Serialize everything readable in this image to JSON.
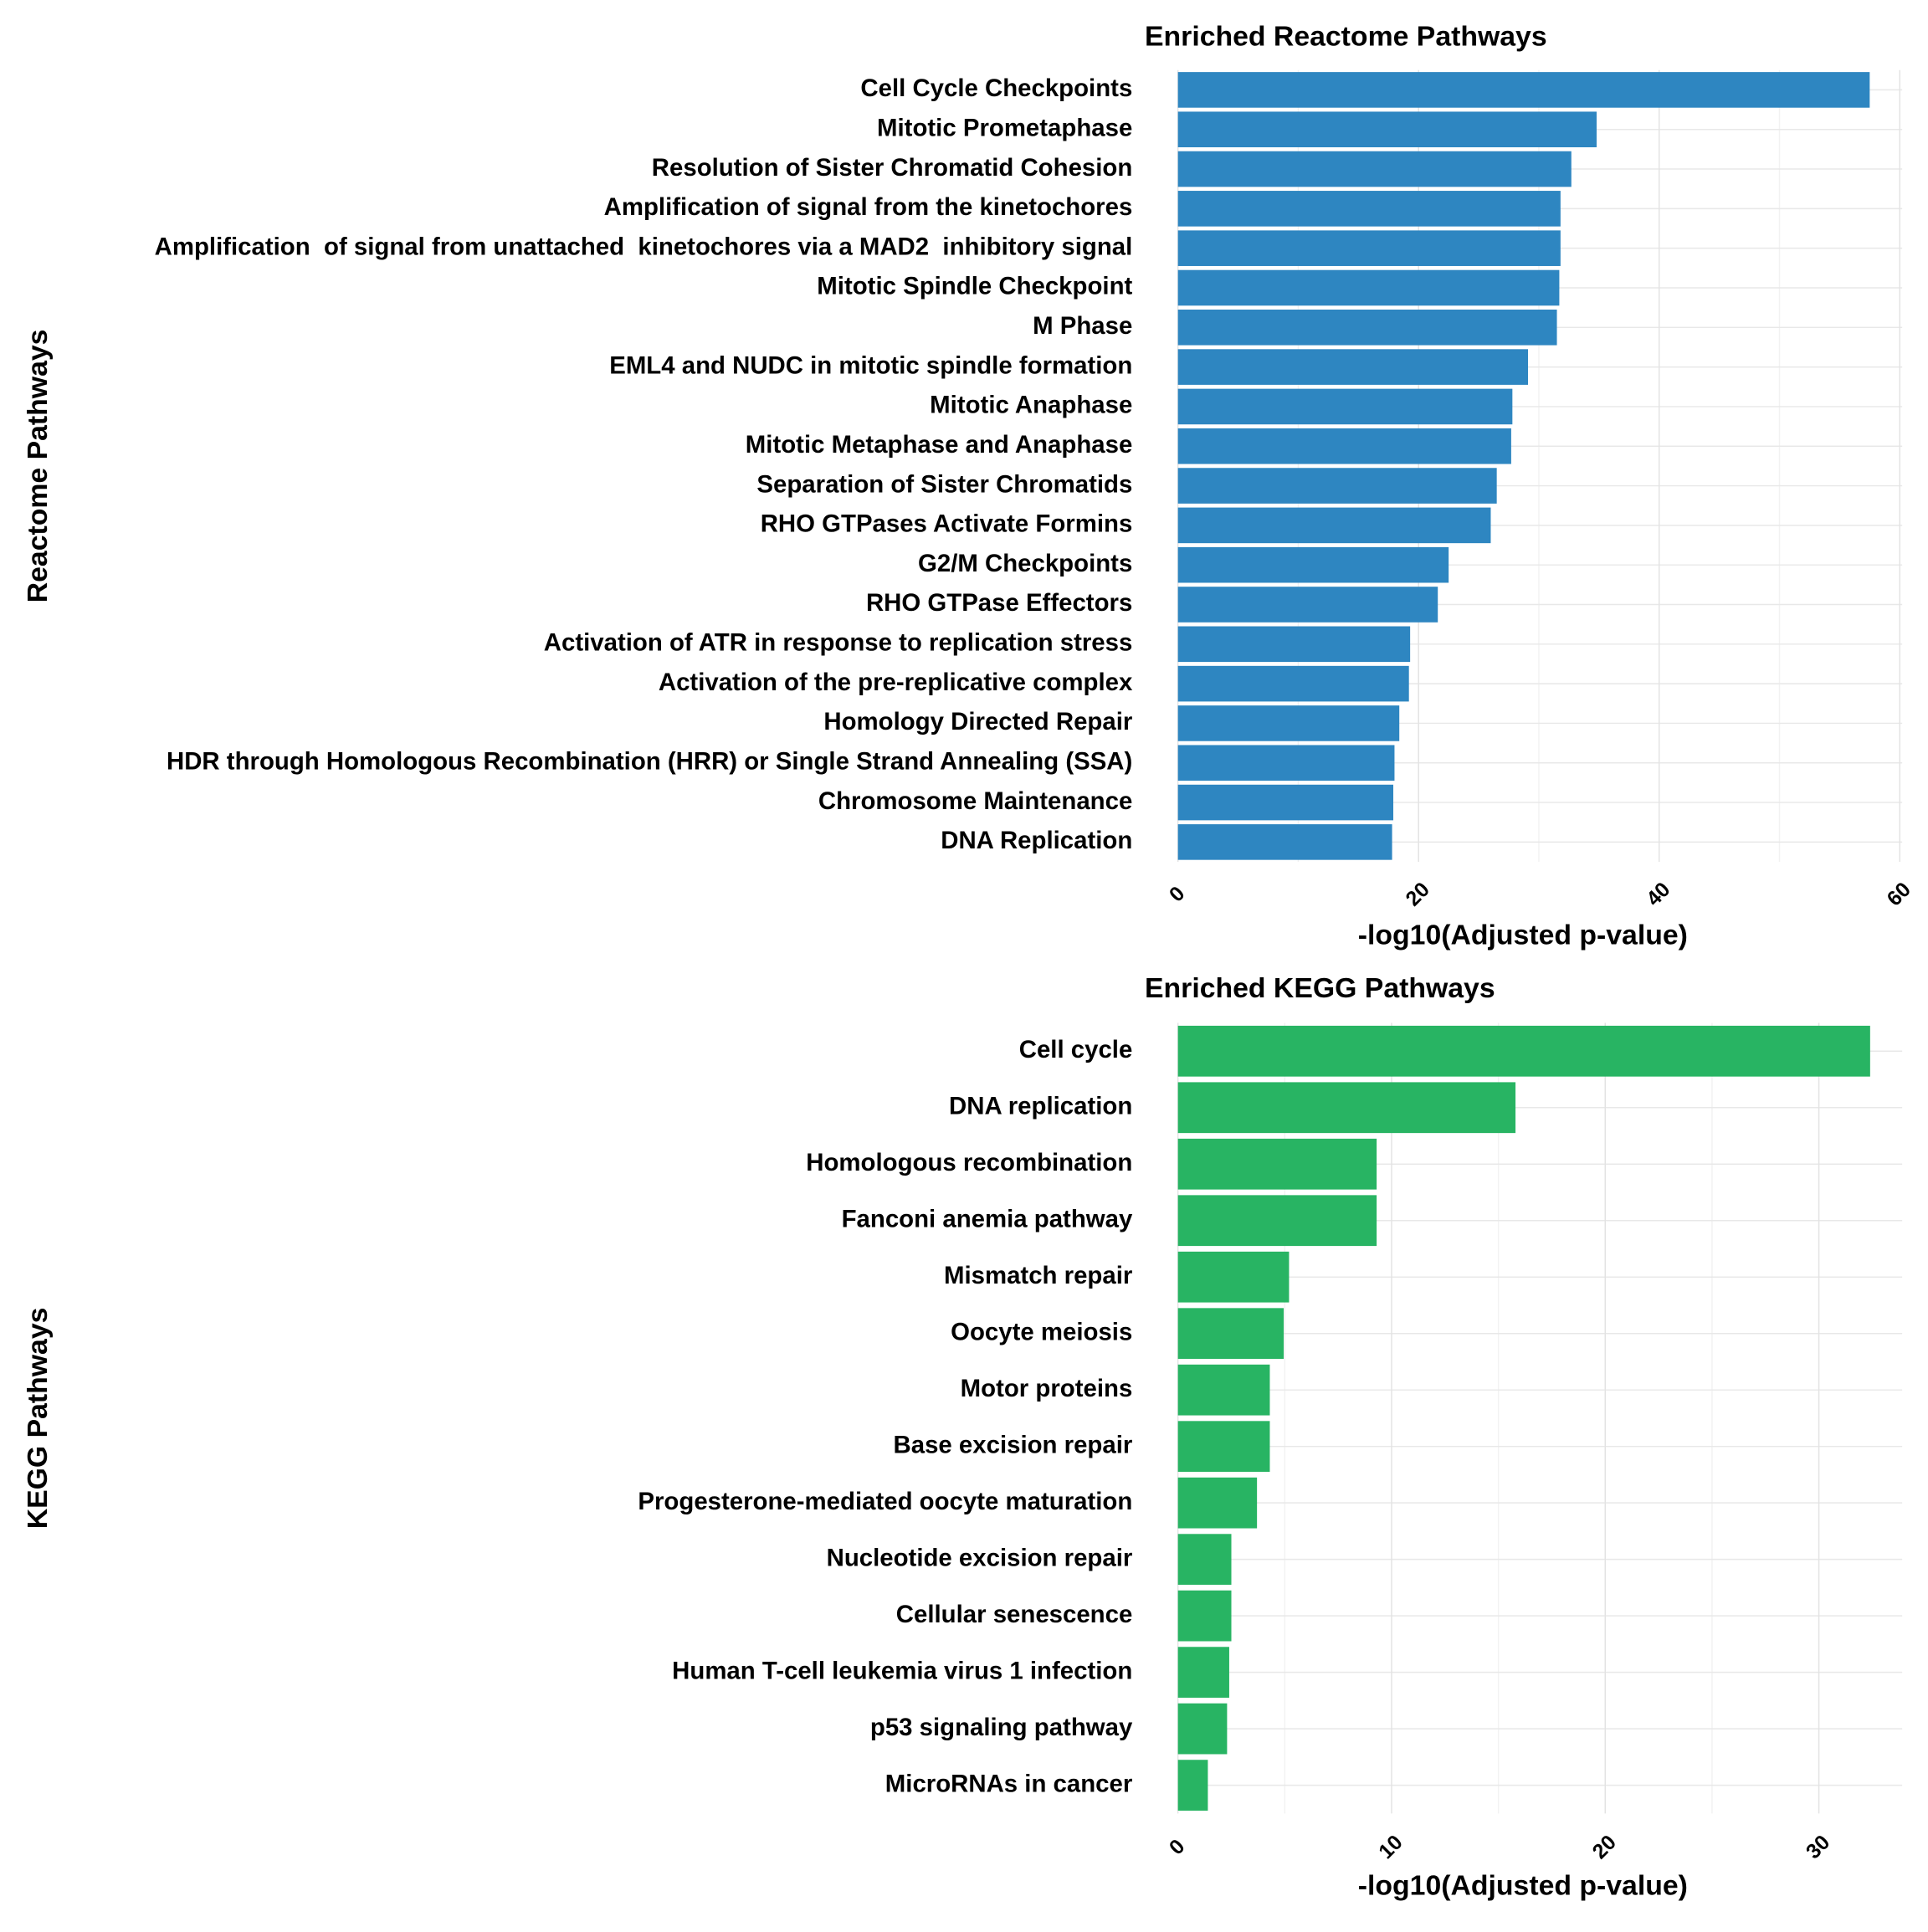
{
  "chart_data": [
    {
      "type": "barh",
      "title": "Enriched Reactome Pathways",
      "x_label": "-log10(Adjusted p-value)",
      "y_label": "Reactome Pathways",
      "color": "#2e86c1",
      "categories": [
        "Cell Cycle Checkpoints",
        "Mitotic Prometaphase",
        "Resolution of Sister Chromatid Cohesion",
        "Amplification of signal from the kinetochores",
        "Amplification  of signal from unattached  kinetochores via a MAD2  inhibitory signal",
        "Mitotic Spindle Checkpoint",
        "M Phase",
        "EML4 and NUDC in mitotic spindle formation",
        "Mitotic Anaphase",
        "Mitotic Metaphase and Anaphase",
        "Separation of Sister Chromatids",
        "RHO GTPases Activate Formins",
        "G2/M Checkpoints",
        "RHO GTPase Effectors",
        "Activation of ATR in response to replication stress",
        "Activation of the pre-replicative complex",
        "Homology Directed Repair",
        "HDR through Homologous Recombination (HRR) or Single Strand Annealing (SSA)",
        "Chromosome Maintenance",
        "DNA Replication"
      ],
      "values": [
        57.5,
        34.8,
        32.7,
        31.8,
        31.8,
        31.7,
        31.5,
        29.1,
        27.8,
        27.7,
        26.5,
        26.0,
        22.5,
        21.6,
        19.3,
        19.2,
        18.4,
        18.0,
        17.9,
        17.8
      ],
      "xlim": [
        0,
        60.2
      ],
      "xticks": [
        0,
        20,
        40,
        60
      ],
      "grid": true
    },
    {
      "type": "barh",
      "title": "Enriched KEGG Pathways",
      "x_label": "-log10(Adjusted p-value)",
      "y_label": "KEGG Pathways",
      "color": "#28b463",
      "categories": [
        "Cell cycle",
        "DNA replication",
        "Homologous recombination",
        "Fanconi anemia pathway",
        "Mismatch repair",
        "Oocyte meiosis",
        "Motor proteins",
        "Base excision repair",
        "Progesterone-mediated oocyte maturation",
        "Nucleotide excision repair",
        "Cellular senescence",
        "Human T-cell leukemia virus 1 infection",
        "p53 signaling pathway",
        "MicroRNAs in cancer"
      ],
      "values": [
        32.4,
        15.8,
        9.3,
        9.3,
        5.2,
        4.95,
        4.3,
        4.3,
        3.7,
        2.5,
        2.5,
        2.4,
        2.3,
        1.4
      ],
      "xlim": [
        0,
        33.9
      ],
      "xticks": [
        0,
        10,
        20,
        30
      ],
      "grid": true
    }
  ]
}
